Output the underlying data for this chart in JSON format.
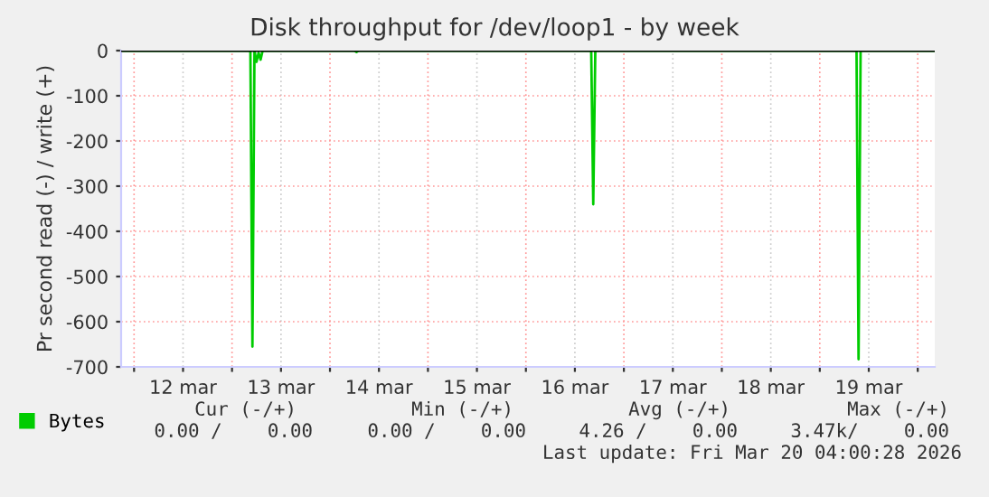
{
  "chart_data": {
    "type": "line",
    "title": "Disk throughput for /dev/loop1 - by week",
    "ylabel": "Pr second read (-) / write (+)",
    "x": [
      "2026-03-11T21:00",
      "2026-03-13T04:30",
      "2026-03-13T05:00",
      "2026-03-13T05:30",
      "2026-03-13T06:00",
      "2026-03-13T06:30",
      "2026-03-13T07:00",
      "2026-03-13T07:30",
      "2026-03-14T06:00",
      "2026-03-14T06:30",
      "2026-03-14T07:00",
      "2026-03-16T16:00",
      "2026-03-16T16:30",
      "2026-03-16T17:00",
      "2026-03-19T09:00",
      "2026-03-19T09:30",
      "2026-03-19T10:00",
      "2026-03-20T04:00"
    ],
    "series": [
      {
        "name": "Bytes",
        "color": "#00cc00",
        "values": [
          0,
          0,
          -655,
          0,
          -25,
          -5,
          -20,
          0,
          0,
          -3,
          0,
          0,
          -340,
          0,
          0,
          -683,
          0,
          0
        ]
      }
    ],
    "xlim": [
      "2026-03-11T20:50",
      "2026-03-20T04:10"
    ],
    "xticks": [
      {
        "value": "2026-03-12T00:00",
        "label": null
      },
      {
        "value": "2026-03-12T12:00",
        "label": "12 mar"
      },
      {
        "value": "2026-03-13T00:00",
        "label": null
      },
      {
        "value": "2026-03-13T12:00",
        "label": "13 mar"
      },
      {
        "value": "2026-03-14T00:00",
        "label": null
      },
      {
        "value": "2026-03-14T12:00",
        "label": "14 mar"
      },
      {
        "value": "2026-03-15T00:00",
        "label": null
      },
      {
        "value": "2026-03-15T12:00",
        "label": "15 mar"
      },
      {
        "value": "2026-03-16T00:00",
        "label": null
      },
      {
        "value": "2026-03-16T12:00",
        "label": "16 mar"
      },
      {
        "value": "2026-03-17T00:00",
        "label": null
      },
      {
        "value": "2026-03-17T12:00",
        "label": "17 mar"
      },
      {
        "value": "2026-03-18T00:00",
        "label": null
      },
      {
        "value": "2026-03-18T12:00",
        "label": "18 mar"
      },
      {
        "value": "2026-03-19T00:00",
        "label": null
      },
      {
        "value": "2026-03-19T12:00",
        "label": "19 mar"
      },
      {
        "value": "2026-03-20T00:00",
        "label": null
      }
    ],
    "ylim": [
      -700,
      0
    ],
    "yticks": [
      -700,
      -600,
      -500,
      -400,
      -300,
      -200,
      -100,
      0
    ],
    "ref_lines": [
      {
        "axis": "y",
        "value": 0,
        "color": "#000000"
      }
    ],
    "grid": true,
    "legend": "bottom left",
    "annotations": [
      "Cur (-/+)",
      "Min (-/+)",
      "Avg (-/+)",
      "Max (-/+)",
      "0.00 /    0.00",
      "0.00 /    0.00",
      "4.26 /    0.00",
      "3.47k/    0.00",
      "Last update: Fri Mar 20 04:00:28 2026"
    ]
  }
}
